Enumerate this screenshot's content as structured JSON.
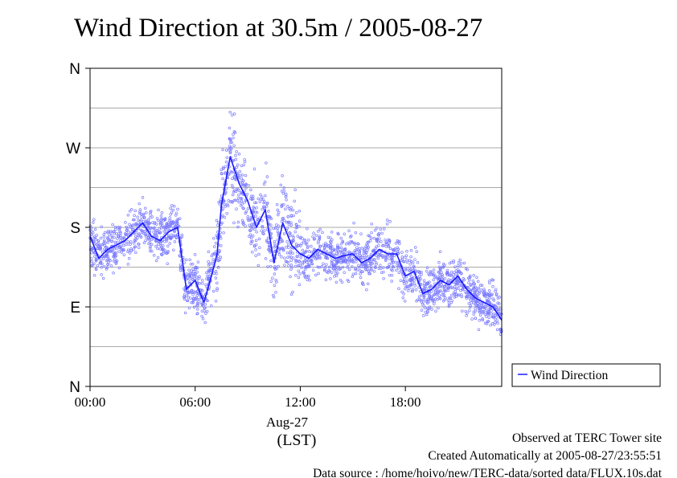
{
  "chart_data": {
    "type": "scatter",
    "title": "Wind Direction at 30.5m / 2005-08-27",
    "x_tick_labels": [
      "00:00",
      "06:00",
      "12:00",
      "18:00"
    ],
    "x_ticks_hours": [
      0,
      6,
      12,
      18
    ],
    "xlim_hours": [
      0,
      23.5
    ],
    "date_label": "Aug-27",
    "x_unit_label": "(LST)",
    "y_tick_labels": [
      "N",
      "E",
      "S",
      "W",
      "N"
    ],
    "y_ticks_deg": [
      0,
      90,
      180,
      270,
      360
    ],
    "ylim_deg": [
      0,
      360
    ],
    "grid": true,
    "legend": {
      "position": "right",
      "entries": [
        "Wind Direction"
      ]
    },
    "colors": {
      "line": "#1a1aff",
      "scatter": "#7a7aff",
      "grid": "#aaaaaa"
    },
    "series": [
      {
        "name": "Wind Direction",
        "style": "line-with-scatter-points",
        "x_hours": [
          0,
          0.5,
          1,
          1.5,
          2,
          2.5,
          3,
          3.5,
          4,
          4.5,
          5,
          5.5,
          6,
          6.5,
          7,
          7.25,
          7.5,
          8,
          8.5,
          9,
          9.5,
          10,
          10.5,
          11,
          11.5,
          12,
          12.5,
          13,
          13.5,
          14,
          14.5,
          15,
          15.5,
          16,
          16.5,
          17,
          17.5,
          18,
          18.5,
          19,
          19.5,
          20,
          20.5,
          21,
          21.5,
          22,
          22.5,
          23,
          23.5
        ],
        "direction_deg": [
          170,
          145,
          155,
          160,
          165,
          175,
          185,
          170,
          165,
          175,
          180,
          110,
          120,
          95,
          130,
          150,
          205,
          260,
          230,
          210,
          180,
          200,
          140,
          185,
          160,
          150,
          145,
          155,
          150,
          145,
          148,
          150,
          140,
          145,
          155,
          150,
          150,
          125,
          130,
          105,
          110,
          120,
          115,
          125,
          110,
          100,
          95,
          90,
          75
        ]
      }
    ]
  },
  "footer": {
    "observed": "Observed at TERC Tower site",
    "created": "Created Automatically at 2005-08-27/23:55:51",
    "source": "Data source : /home/hoivo/new/TERC-data/sorted  data/FLUX.10s.dat"
  }
}
